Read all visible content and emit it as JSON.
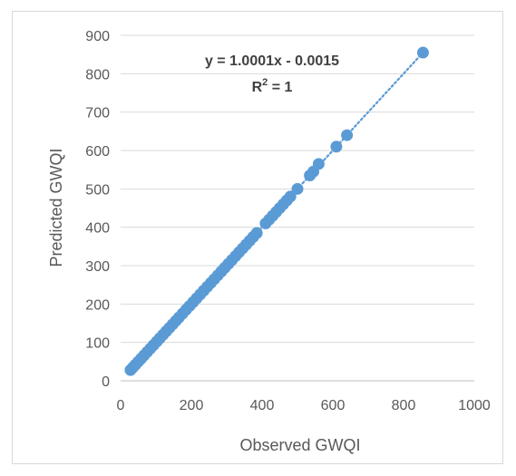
{
  "chart_data": {
    "type": "scatter",
    "xlabel": "Observed GWQI",
    "ylabel": "Predicted GWQI",
    "xlim": [
      0,
      1000
    ],
    "ylim": [
      0,
      900
    ],
    "x_ticks": [
      0,
      200,
      400,
      600,
      800,
      1000
    ],
    "y_ticks": [
      0,
      100,
      200,
      300,
      400,
      500,
      600,
      700,
      800,
      900
    ],
    "x_tick_labels": [
      "0",
      "200",
      "400",
      "600",
      "800",
      "1000"
    ],
    "y_tick_labels": [
      "0",
      "100",
      "200",
      "300",
      "400",
      "500",
      "600",
      "700",
      "800",
      "900"
    ],
    "grid": "horizontal",
    "series": [
      {
        "color": "#5b9bd5",
        "x": [
          28,
          35,
          42,
          50,
          58,
          66,
          75,
          84,
          93,
          102,
          111,
          120,
          129,
          138,
          147,
          156,
          165,
          175,
          185,
          195,
          205,
          215,
          225,
          235,
          245,
          255,
          265,
          275,
          285,
          295,
          305,
          315,
          325,
          335,
          345,
          355,
          365,
          375,
          385,
          410,
          420,
          430,
          440,
          450,
          460,
          470,
          480,
          500,
          535,
          545,
          560,
          610,
          640,
          855
        ],
        "y": [
          28,
          35,
          42,
          50,
          58,
          66,
          75,
          84,
          93,
          102,
          111,
          120,
          129,
          138,
          147,
          156,
          165,
          175,
          185,
          195,
          205,
          215,
          225,
          235,
          245,
          255,
          265,
          275,
          285,
          295,
          305,
          315,
          325,
          335,
          345,
          355,
          365,
          375,
          385,
          410,
          420,
          430,
          440,
          450,
          460,
          470,
          480,
          500,
          535,
          545,
          565,
          610,
          640,
          855
        ]
      }
    ],
    "trendline": {
      "slope": 1.0001,
      "intercept": -0.0015,
      "x_range": [
        28,
        855
      ],
      "color": "#5b9bd5",
      "style": "dotted"
    },
    "annotations": {
      "equation": "y = 1.0001x - 0.0015",
      "r2_prefix": "R",
      "r2_exponent": "2",
      "r2_suffix": " = 1"
    }
  }
}
